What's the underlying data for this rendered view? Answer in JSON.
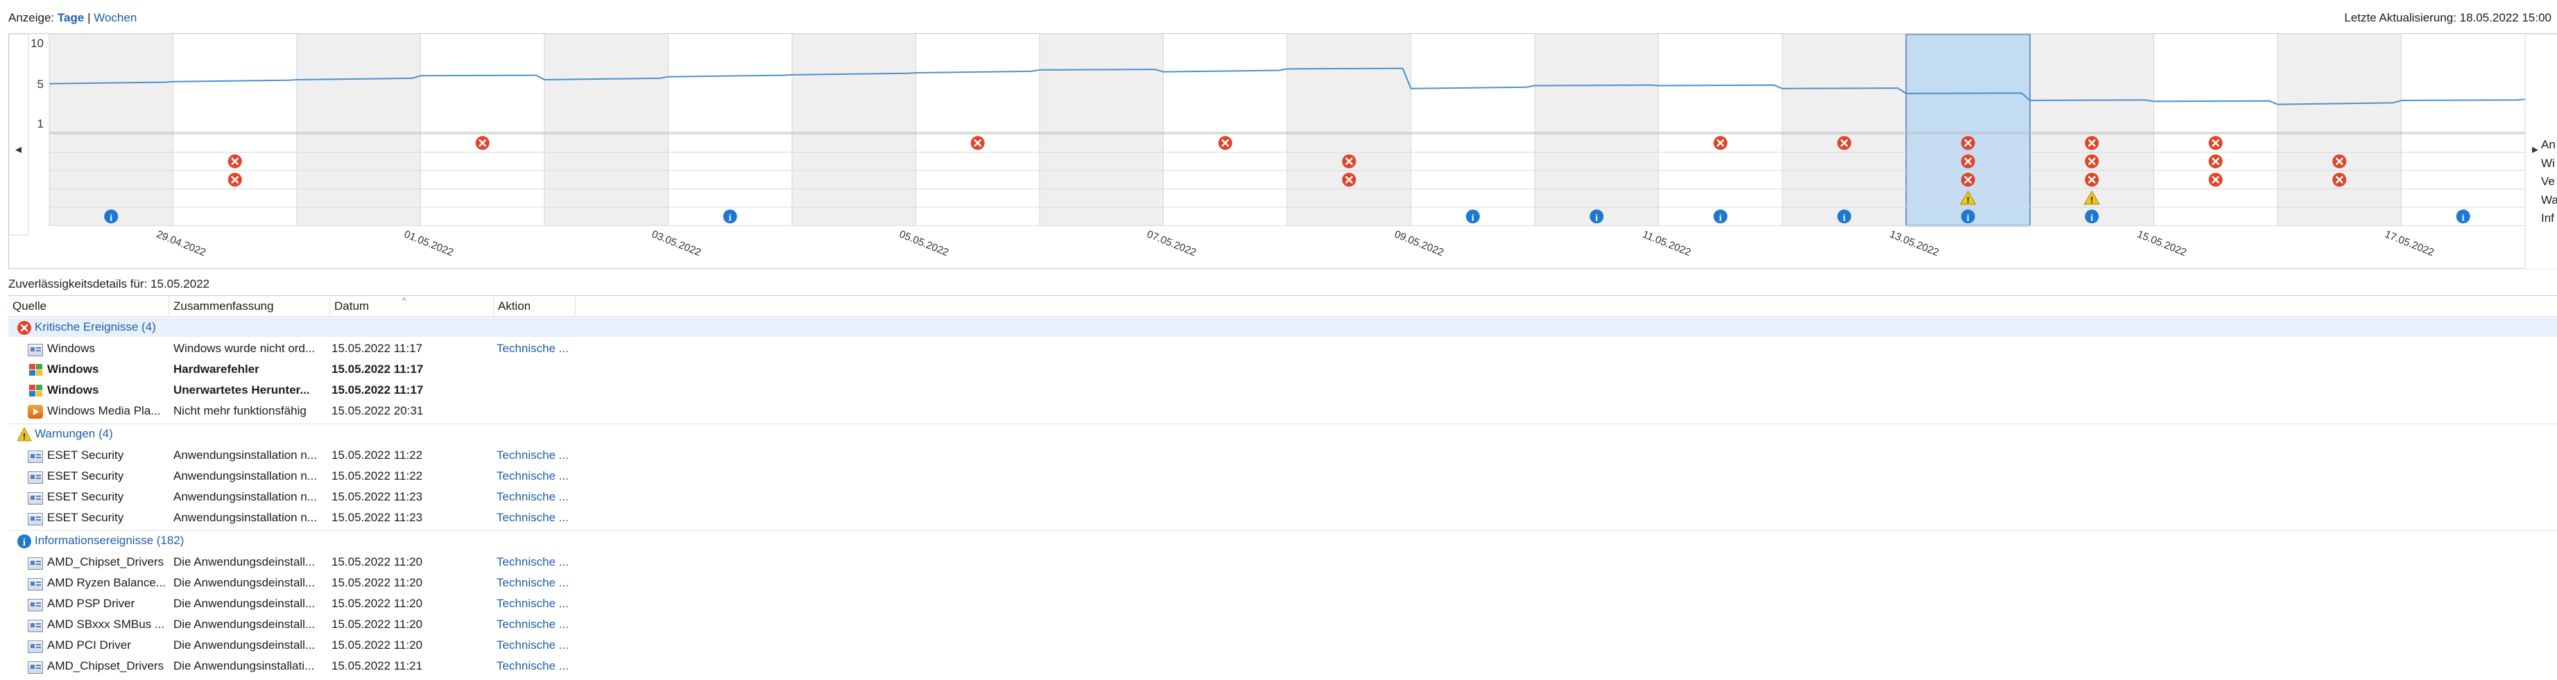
{
  "topbar": {
    "view_prefix": "Anzeige:",
    "view_days": "Tage",
    "view_separator": "|",
    "view_weeks": "Wochen",
    "last_update": "Letzte Aktualisierung: 18.05.2022 15:00"
  },
  "chart_data": {
    "type": "line",
    "title": "",
    "ylabel": "",
    "xlabel": "",
    "yticks": [
      "10",
      "5",
      "1"
    ],
    "ylim": [
      1,
      10
    ],
    "day_labels": [
      "29.04.2022",
      "01.05.2022",
      "03.05.2022",
      "05.05.2022",
      "07.05.2022",
      "09.05.2022",
      "11.05.2022",
      "13.05.2022",
      "15.05.2022",
      "17.05.2022"
    ],
    "columns": 20,
    "selected_column": 16,
    "stability_index": [
      5.1,
      5.3,
      5.5,
      5.9,
      5.5,
      5.8,
      6.0,
      6.2,
      6.5,
      6.3,
      6.6,
      4.6,
      4.9,
      4.9,
      4.6,
      4.1,
      3.4,
      3.3,
      3.0,
      3.4
    ],
    "row_labels_right": [
      "Anwendungsfehler",
      "Windows-Fehler",
      "Verschiedene Fehler",
      "Warnungen",
      "Informationen"
    ],
    "rows": [
      {
        "name": "Anwendungsfehler",
        "kind": "error",
        "cols": [
          4,
          8,
          10,
          14,
          15,
          16,
          17,
          18
        ]
      },
      {
        "name": "Windows-Fehler",
        "kind": "error",
        "cols": [
          2,
          11,
          16,
          17,
          18,
          19
        ]
      },
      {
        "name": "Verschiedene Fehler",
        "kind": "error",
        "cols": [
          2,
          11,
          16,
          17,
          18,
          19
        ]
      },
      {
        "name": "Warnungen",
        "kind": "warning",
        "cols": [
          16,
          17
        ]
      },
      {
        "name": "Informationen",
        "kind": "info",
        "cols": [
          1,
          6,
          12,
          13,
          14,
          15,
          16,
          17,
          20
        ]
      }
    ]
  },
  "right_labels": [
    "An",
    "Wi",
    "Ve",
    "Wa",
    "Inf"
  ],
  "details": {
    "title": "Zuverlässigkeitsdetails für: 15.05.2022",
    "columns": [
      "Quelle",
      "Zusammenfassung",
      "Datum",
      "Aktion"
    ],
    "groups": [
      {
        "icon": "error",
        "label": "Kritische Ereignisse (4)",
        "rows": [
          {
            "icon": "app",
            "source": "Windows",
            "summary": "Windows wurde nicht ord...",
            "date": "15.05.2022 11:17",
            "action": "Technische ...",
            "bold": false
          },
          {
            "icon": "win",
            "source": "Windows",
            "summary": "Hardwarefehler",
            "date": "15.05.2022 11:17",
            "action": "",
            "bold": true
          },
          {
            "icon": "win",
            "source": "Windows",
            "summary": "Unerwartetes Herunter...",
            "date": "15.05.2022 11:17",
            "action": "",
            "bold": true
          },
          {
            "icon": "wmp",
            "source": "Windows Media Pla...",
            "summary": "Nicht mehr funktionsfähig",
            "date": "15.05.2022 20:31",
            "action": "",
            "bold": false
          }
        ]
      },
      {
        "icon": "warning",
        "label": "Warnungen (4)",
        "rows": [
          {
            "icon": "app",
            "source": "ESET Security",
            "summary": "Anwendungsinstallation n...",
            "date": "15.05.2022 11:22",
            "action": "Technische ...",
            "bold": false
          },
          {
            "icon": "app",
            "source": "ESET Security",
            "summary": "Anwendungsinstallation n...",
            "date": "15.05.2022 11:22",
            "action": "Technische ...",
            "bold": false
          },
          {
            "icon": "app",
            "source": "ESET Security",
            "summary": "Anwendungsinstallation n...",
            "date": "15.05.2022 11:23",
            "action": "Technische ...",
            "bold": false
          },
          {
            "icon": "app",
            "source": "ESET Security",
            "summary": "Anwendungsinstallation n...",
            "date": "15.05.2022 11:23",
            "action": "Technische ...",
            "bold": false
          }
        ]
      },
      {
        "icon": "info",
        "label": "Informationsereignisse (182)",
        "rows": [
          {
            "icon": "app",
            "source": "AMD_Chipset_Drivers",
            "summary": "Die Anwendungsdeinstall...",
            "date": "15.05.2022 11:20",
            "action": "Technische ...",
            "bold": false
          },
          {
            "icon": "app",
            "source": "AMD Ryzen Balance...",
            "summary": "Die Anwendungsdeinstall...",
            "date": "15.05.2022 11:20",
            "action": "Technische ...",
            "bold": false
          },
          {
            "icon": "app",
            "source": "AMD PSP Driver",
            "summary": "Die Anwendungsdeinstall...",
            "date": "15.05.2022 11:20",
            "action": "Technische ...",
            "bold": false
          },
          {
            "icon": "app",
            "source": "AMD SBxxx SMBus ...",
            "summary": "Die Anwendungsdeinstall...",
            "date": "15.05.2022 11:20",
            "action": "Technische ...",
            "bold": false
          },
          {
            "icon": "app",
            "source": "AMD PCI Driver",
            "summary": "Die Anwendungsdeinstall...",
            "date": "15.05.2022 11:20",
            "action": "Technische ...",
            "bold": false
          },
          {
            "icon": "app",
            "source": "AMD_Chipset_Drivers",
            "summary": "Die Anwendungsinstallati...",
            "date": "15.05.2022 11:21",
            "action": "Technische ...",
            "bold": false
          }
        ]
      }
    ]
  },
  "colors": {
    "accent": "#1f5fa8",
    "line": "#4a90d0",
    "selected": "#c3dcf2",
    "error": "#e0452b",
    "warning": "#f0c419",
    "info": "#1e78d2",
    "shade": "#efefef"
  }
}
